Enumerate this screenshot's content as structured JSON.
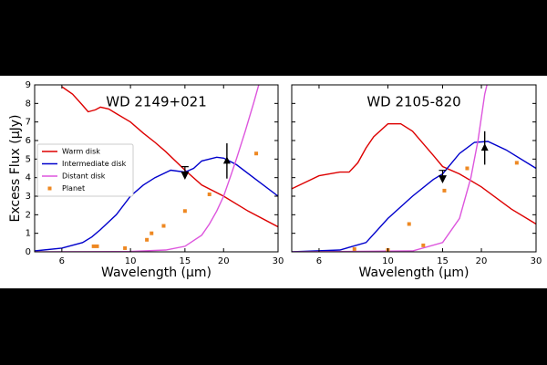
{
  "chart_data": [
    {
      "type": "line",
      "title": "WD 2149+021",
      "x_label": "Wavelength (μm)",
      "y_label": "Excess Flux (μJy)",
      "xscale": "log",
      "xlim": [
        4.9,
        30
      ],
      "xticks": [
        6,
        10,
        15,
        20,
        30
      ],
      "ylim": [
        0,
        9
      ],
      "yticks": [
        0,
        1,
        2,
        3,
        4,
        5,
        6,
        7,
        8,
        9
      ],
      "legend": "left",
      "series": [
        {
          "name": "Warm disk",
          "color": "#dd0000",
          "kind": "line",
          "x": [
            6,
            6.5,
            7,
            7.3,
            7.7,
            8,
            8.5,
            9,
            10,
            11,
            12,
            13,
            15,
            17,
            20,
            24,
            30
          ],
          "values": [
            8.9,
            8.5,
            7.9,
            7.55,
            7.65,
            7.8,
            7.7,
            7.45,
            7.0,
            6.4,
            5.9,
            5.4,
            4.4,
            3.6,
            3.0,
            2.2,
            1.35
          ]
        },
        {
          "name": "Intermediate disk",
          "color": "#0000cc",
          "kind": "line",
          "x": [
            4.9,
            6,
            7,
            7.5,
            8,
            9,
            10,
            11,
            12,
            13.5,
            15,
            16,
            17,
            19,
            20,
            22,
            25,
            30
          ],
          "values": [
            0.05,
            0.2,
            0.5,
            0.8,
            1.2,
            2.0,
            3.0,
            3.6,
            4.0,
            4.4,
            4.3,
            4.5,
            4.9,
            5.1,
            5.05,
            4.7,
            4.0,
            3.0
          ]
        },
        {
          "name": "Distant disk",
          "color": "#dd55dd",
          "kind": "line",
          "x": [
            4.9,
            10,
            13,
            15,
            17,
            18,
            19,
            20,
            21,
            22,
            23.5,
            25,
            26.5
          ],
          "values": [
            0,
            0.02,
            0.1,
            0.3,
            0.9,
            1.5,
            2.2,
            3.0,
            4.0,
            5.0,
            6.5,
            8.0,
            9.5
          ]
        },
        {
          "name": "Planet",
          "color": "#ee8822",
          "kind": "markers",
          "x": [
            7.6,
            7.8,
            9.6,
            11.3,
            11.7,
            12.8,
            15,
            18,
            25.5
          ],
          "values": [
            0.3,
            0.3,
            0.2,
            0.65,
            1.0,
            1.4,
            2.2,
            3.1,
            5.3
          ]
        }
      ],
      "upper_limits": {
        "x": [
          15
        ],
        "values": [
          4.1
        ]
      },
      "detections": {
        "x": [
          20.5
        ],
        "values": [
          4.9
        ],
        "errors": [
          0.95
        ]
      }
    },
    {
      "type": "line",
      "title": "WD 2105-820",
      "x_label": "Wavelength (μm)",
      "xscale": "log",
      "xlim": [
        4.9,
        30
      ],
      "xticks": [
        6,
        10,
        15,
        20,
        30
      ],
      "ylim": [
        0,
        9
      ],
      "yticks": [
        0,
        1,
        2,
        3,
        4,
        5,
        6,
        7,
        8,
        9
      ],
      "series": [
        {
          "color": "#dd0000",
          "kind": "line",
          "x": [
            4.9,
            5.5,
            6,
            7,
            7.5,
            8,
            8.5,
            9,
            10,
            11,
            12,
            14,
            15,
            17,
            20,
            25,
            30
          ],
          "values": [
            3.4,
            3.8,
            4.1,
            4.3,
            4.3,
            4.8,
            5.6,
            6.2,
            6.9,
            6.9,
            6.5,
            5.2,
            4.6,
            4.2,
            3.5,
            2.3,
            1.5
          ]
        },
        {
          "color": "#0000cc",
          "kind": "line",
          "x": [
            4.9,
            7,
            8.5,
            10,
            12,
            14,
            15,
            17,
            19,
            21,
            24,
            30
          ],
          "values": [
            0,
            0.1,
            0.5,
            1.8,
            3.0,
            3.9,
            4.2,
            5.3,
            5.9,
            5.95,
            5.5,
            4.5
          ]
        },
        {
          "color": "#dd55dd",
          "kind": "line",
          "x": [
            4.9,
            12,
            15,
            17,
            18.5,
            19.5,
            20.5,
            21.2
          ],
          "values": [
            0,
            0.05,
            0.5,
            1.8,
            4.0,
            6.0,
            8.5,
            9.5
          ]
        },
        {
          "color": "#ee8822",
          "kind": "markers",
          "x": [
            7.8,
            10,
            11.7,
            13,
            15.2,
            18,
            26
          ],
          "values": [
            0.15,
            0.1,
            1.5,
            0.35,
            3.3,
            4.5,
            4.8
          ]
        }
      ],
      "upper_limits": {
        "x": [
          15
        ],
        "values": [
          3.9
        ]
      },
      "detections": {
        "x": [
          20.5
        ],
        "values": [
          5.6
        ],
        "errors": [
          0.9
        ]
      }
    }
  ]
}
